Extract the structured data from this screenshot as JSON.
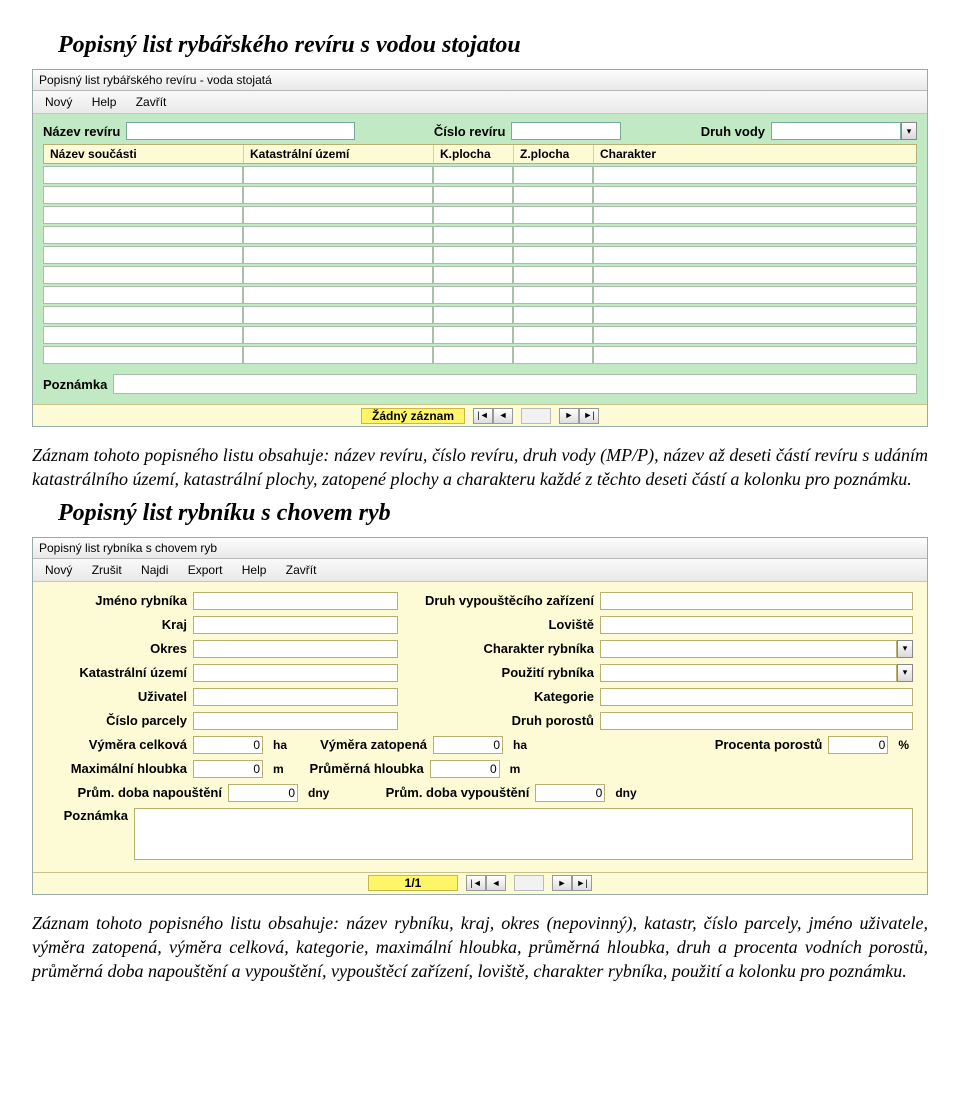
{
  "doc": {
    "heading1": "Popisný list rybářského revíru s vodou stojatou",
    "para1": "Záznam tohoto popisného listu obsahuje: název revíru, číslo revíru, druh vody (MP/P), název až deseti částí  revíru s udáním katastrálního území, katastrální plochy, zatopené plochy a charakteru každé z těchto deseti částí a kolonku pro poznámku.",
    "heading2": "Popisný list rybníku s chovem ryb",
    "para2": "Záznam tohoto popisného listu obsahuje: název rybníku, kraj, okres (nepovinný), katastr, číslo parcely, jméno uživatele, výměra zatopená, výměra celková, kategorie, maximální hloubka, průměrná hloubka, druh a procenta vodních porostů, průměrná doba napouštění a vypouštění, vypouštěcí zařízení, loviště, charakter rybníka, použití a kolonku pro poznámku."
  },
  "panel1": {
    "title": "Popisný list rybářského revíru - voda stojatá",
    "menu": [
      "Nový",
      "Help",
      "Zavřít"
    ],
    "labels": {
      "nazev_reviru": "Název revíru",
      "cislo_reviru": "Číslo revíru",
      "druh_vody": "Druh vody",
      "poznamka": "Poznámka"
    },
    "columns": {
      "nazev_soucasti": "Název součásti",
      "katastr": "Katastrální území",
      "kplocha": "K.plocha",
      "zplocha": "Z.plocha",
      "charakter": "Charakter"
    },
    "row_count": 10,
    "nav_status": "Žádný záznam"
  },
  "panel2": {
    "title": "Popisný list rybníka s chovem ryb",
    "menu": [
      "Nový",
      "Zrušit",
      "Najdi",
      "Export",
      "Help",
      "Zavřít"
    ],
    "labels": {
      "jmeno": "Jméno rybníka",
      "druh_vyp": "Druh vypouštěcího zařízení",
      "kraj": "Kraj",
      "loviste": "Loviště",
      "okres": "Okres",
      "charakter_ryb": "Charakter rybníka",
      "katastr": "Katastrální území",
      "pouziti": "Použití rybníka",
      "uzivatel": "Uživatel",
      "kategorie": "Kategorie",
      "cislo_parcely": "Číslo parcely",
      "druh_porostu": "Druh porostů",
      "vymera_celkova": "Výměra celková",
      "vymera_zatopena": "Výměra zatopená",
      "procenta_porostu": "Procenta porostů",
      "max_hloubka": "Maximální hloubka",
      "prum_hloubka": "Průměrná hloubka",
      "prum_doba_nap": "Prům. doba napouštění",
      "prum_doba_vyp": "Prům. doba vypouštění",
      "poznamka": "Poznámka"
    },
    "values": {
      "vymera_celkova": "0",
      "vymera_zatopena": "0",
      "procenta_porostu": "0",
      "max_hloubka": "0",
      "prum_hloubka": "0",
      "prum_doba_nap": "0",
      "prum_doba_vyp": "0"
    },
    "units": {
      "ha": "ha",
      "m": "m",
      "dny": "dny",
      "pct": "%"
    },
    "nav_status": "1/1"
  },
  "nav_icons": {
    "first": "|◄",
    "prev": "◄",
    "next": "►",
    "last": "►|"
  }
}
